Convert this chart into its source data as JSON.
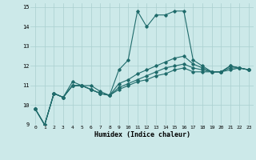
{
  "xlabel": "Humidex (Indice chaleur)",
  "xlim": [
    -0.5,
    23.5
  ],
  "ylim": [
    9,
    15.2
  ],
  "yticks": [
    9,
    10,
    11,
    12,
    13,
    14,
    15
  ],
  "xticks": [
    0,
    1,
    2,
    3,
    4,
    5,
    6,
    7,
    8,
    9,
    10,
    11,
    12,
    13,
    14,
    15,
    16,
    17,
    18,
    19,
    20,
    21,
    22,
    23
  ],
  "background_color": "#cce9e9",
  "grid_color": "#aacfcf",
  "line_color": "#1f6b6b",
  "series": [
    [
      9.8,
      9.0,
      10.6,
      10.4,
      11.2,
      11.0,
      11.0,
      10.7,
      10.5,
      11.8,
      12.3,
      14.8,
      14.0,
      14.6,
      14.6,
      14.8,
      14.8,
      12.3,
      12.0,
      11.7,
      11.7,
      12.0,
      11.9,
      11.8
    ],
    [
      9.8,
      9.0,
      10.6,
      10.4,
      11.0,
      11.0,
      10.8,
      10.6,
      10.5,
      11.1,
      11.3,
      11.6,
      11.8,
      12.0,
      12.2,
      12.4,
      12.5,
      12.1,
      11.9,
      11.7,
      11.7,
      12.0,
      11.9,
      11.8
    ],
    [
      9.8,
      9.0,
      10.6,
      10.4,
      11.0,
      11.0,
      10.8,
      10.6,
      10.5,
      10.9,
      11.1,
      11.3,
      11.5,
      11.7,
      11.9,
      12.0,
      12.1,
      11.9,
      11.8,
      11.7,
      11.7,
      11.9,
      11.9,
      11.8
    ],
    [
      9.8,
      9.0,
      10.6,
      10.4,
      11.0,
      11.0,
      10.8,
      10.6,
      10.5,
      10.8,
      11.0,
      11.2,
      11.3,
      11.5,
      11.6,
      11.8,
      11.9,
      11.7,
      11.7,
      11.7,
      11.7,
      11.8,
      11.9,
      11.8
    ]
  ]
}
